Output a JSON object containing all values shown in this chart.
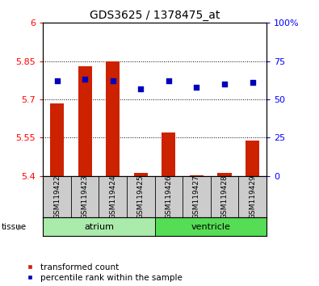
{
  "title": "GDS3625 / 1378475_at",
  "samples": [
    "GSM119422",
    "GSM119423",
    "GSM119424",
    "GSM119425",
    "GSM119426",
    "GSM119427",
    "GSM119428",
    "GSM119429"
  ],
  "transformed_counts": [
    5.685,
    5.83,
    5.848,
    5.413,
    5.57,
    5.402,
    5.413,
    5.537
  ],
  "percentile_ranks": [
    62,
    63,
    62,
    57,
    62,
    58,
    60,
    61
  ],
  "ylim_left": [
    5.4,
    6.0
  ],
  "ylim_right": [
    0,
    100
  ],
  "yticks_left": [
    5.4,
    5.55,
    5.7,
    5.85,
    6.0
  ],
  "yticks_right": [
    0,
    25,
    50,
    75,
    100
  ],
  "ytick_labels_left": [
    "5.4",
    "5.55",
    "5.7",
    "5.85",
    "6"
  ],
  "ytick_labels_right": [
    "0",
    "25",
    "50",
    "75",
    "100%"
  ],
  "groups": [
    {
      "label": "atrium",
      "start": 0,
      "end": 4,
      "color": "#aaeaaa"
    },
    {
      "label": "ventricle",
      "start": 4,
      "end": 8,
      "color": "#55dd55"
    }
  ],
  "bar_color": "#cc2200",
  "dot_color": "#0000bb",
  "bg_color": "#ffffff",
  "sample_bg_color": "#cccccc",
  "legend_items": [
    {
      "label": "transformed count",
      "color": "#cc2200"
    },
    {
      "label": "percentile rank within the sample",
      "color": "#0000bb"
    }
  ],
  "bar_width": 0.5
}
